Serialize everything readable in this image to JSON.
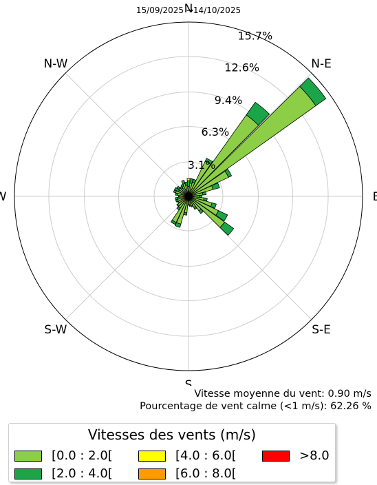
{
  "chart_data": {
    "type": "windrose",
    "title": "15/09/2025 →14/10/2025",
    "directions": [
      "N",
      "N-E",
      "E",
      "S-E",
      "S",
      "S-W",
      "W",
      "N-W"
    ],
    "radial_ticks": [
      "3.1%",
      "6.3%",
      "9.4%",
      "12.6%",
      "15.7%"
    ],
    "radial_tick_values": [
      3.1,
      6.3,
      9.4,
      12.6,
      15.7
    ],
    "rmax": 15.7,
    "speed_bins": [
      {
        "label": "[0.0 : 2.0[",
        "color": "#8ccf47"
      },
      {
        "label": "[2.0 : 4.0[",
        "color": "#1aa648"
      },
      {
        "label": "[4.0 : 6.0[",
        "color": "#ffff00"
      },
      {
        "label": "[6.0 : 8.0[",
        "color": "#ff9a00"
      },
      {
        "label": ">8.0",
        "color": "#ff0000"
      }
    ],
    "sectors": [
      {
        "dir": 0,
        "values": [
          0.9,
          0.5,
          0.2,
          0,
          0
        ]
      },
      {
        "dir": 10,
        "values": [
          1.2,
          0.4,
          0,
          0,
          0
        ]
      },
      {
        "dir": 20,
        "values": [
          1.3,
          0.3,
          0,
          0,
          0
        ]
      },
      {
        "dir": 30,
        "values": [
          3.5,
          0.3,
          0,
          0,
          0
        ]
      },
      {
        "dir": 40,
        "values": [
          9.0,
          1.4,
          0,
          0,
          0
        ]
      },
      {
        "dir": 50,
        "values": [
          14.1,
          1.1,
          0,
          0,
          0
        ]
      },
      {
        "dir": 60,
        "values": [
          4.0,
          0.3,
          0,
          0,
          0
        ]
      },
      {
        "dir": 70,
        "values": [
          2.3,
          0.6,
          0,
          0,
          0
        ]
      },
      {
        "dir": 80,
        "values": [
          1.3,
          0.3,
          0,
          0,
          0
        ]
      },
      {
        "dir": 90,
        "values": [
          1.0,
          0.2,
          0,
          0,
          0
        ]
      },
      {
        "dir": 100,
        "values": [
          1.4,
          0.3,
          0,
          0,
          0
        ]
      },
      {
        "dir": 110,
        "values": [
          2.2,
          0.4,
          0,
          0,
          0
        ]
      },
      {
        "dir": 120,
        "values": [
          3.0,
          0.9,
          0,
          0,
          0
        ]
      },
      {
        "dir": 130,
        "values": [
          4.0,
          1.0,
          0,
          0,
          0
        ]
      },
      {
        "dir": 140,
        "values": [
          1.6,
          0.3,
          0,
          0,
          0
        ]
      },
      {
        "dir": 150,
        "values": [
          1.1,
          0.2,
          0,
          0,
          0
        ]
      },
      {
        "dir": 160,
        "values": [
          0.9,
          0.1,
          0,
          0,
          0
        ]
      },
      {
        "dir": 170,
        "values": [
          0.8,
          0.1,
          0,
          0,
          0
        ]
      },
      {
        "dir": 180,
        "values": [
          0.7,
          0.1,
          0,
          0,
          0
        ]
      },
      {
        "dir": 190,
        "values": [
          1.5,
          0.2,
          0,
          0,
          0
        ]
      },
      {
        "dir": 200,
        "values": [
          2.6,
          0.3,
          0,
          0,
          0
        ]
      },
      {
        "dir": 210,
        "values": [
          2.6,
          0.2,
          0,
          0,
          0
        ]
      },
      {
        "dir": 220,
        "values": [
          1.3,
          0.2,
          0,
          0,
          0
        ]
      },
      {
        "dir": 230,
        "values": [
          1.2,
          0.1,
          0,
          0,
          0
        ]
      },
      {
        "dir": 240,
        "values": [
          1.0,
          0.1,
          0,
          0,
          0
        ]
      },
      {
        "dir": 250,
        "values": [
          1.1,
          0.1,
          0,
          0,
          0
        ]
      },
      {
        "dir": 260,
        "values": [
          1.0,
          0.2,
          0,
          0,
          0
        ]
      },
      {
        "dir": 270,
        "values": [
          0.8,
          0.1,
          0,
          0,
          0
        ]
      },
      {
        "dir": 280,
        "values": [
          1.0,
          0.2,
          0,
          0,
          0
        ]
      },
      {
        "dir": 290,
        "values": [
          1.2,
          0.2,
          0,
          0,
          0
        ]
      },
      {
        "dir": 300,
        "values": [
          1.0,
          0.4,
          0,
          0,
          0
        ]
      },
      {
        "dir": 310,
        "values": [
          1.1,
          0.2,
          0,
          0,
          0
        ]
      },
      {
        "dir": 320,
        "values": [
          0.9,
          0.2,
          0,
          0,
          0
        ]
      },
      {
        "dir": 330,
        "values": [
          1.0,
          0.2,
          0,
          0,
          0
        ]
      },
      {
        "dir": 340,
        "values": [
          1.2,
          0.3,
          0,
          0,
          0
        ]
      },
      {
        "dir": 350,
        "values": [
          1.0,
          0.3,
          0,
          0,
          0
        ]
      }
    ],
    "grid": true,
    "legend_position": "bottom-left"
  },
  "stats": {
    "mean_wind": "Vitesse moyenne du vent: 0.90 m/s",
    "calm": "Pourcentage de vent calme (<1 m/s): 62.26 %"
  },
  "legend": {
    "title": "Vitesses des vents (m/s)"
  }
}
